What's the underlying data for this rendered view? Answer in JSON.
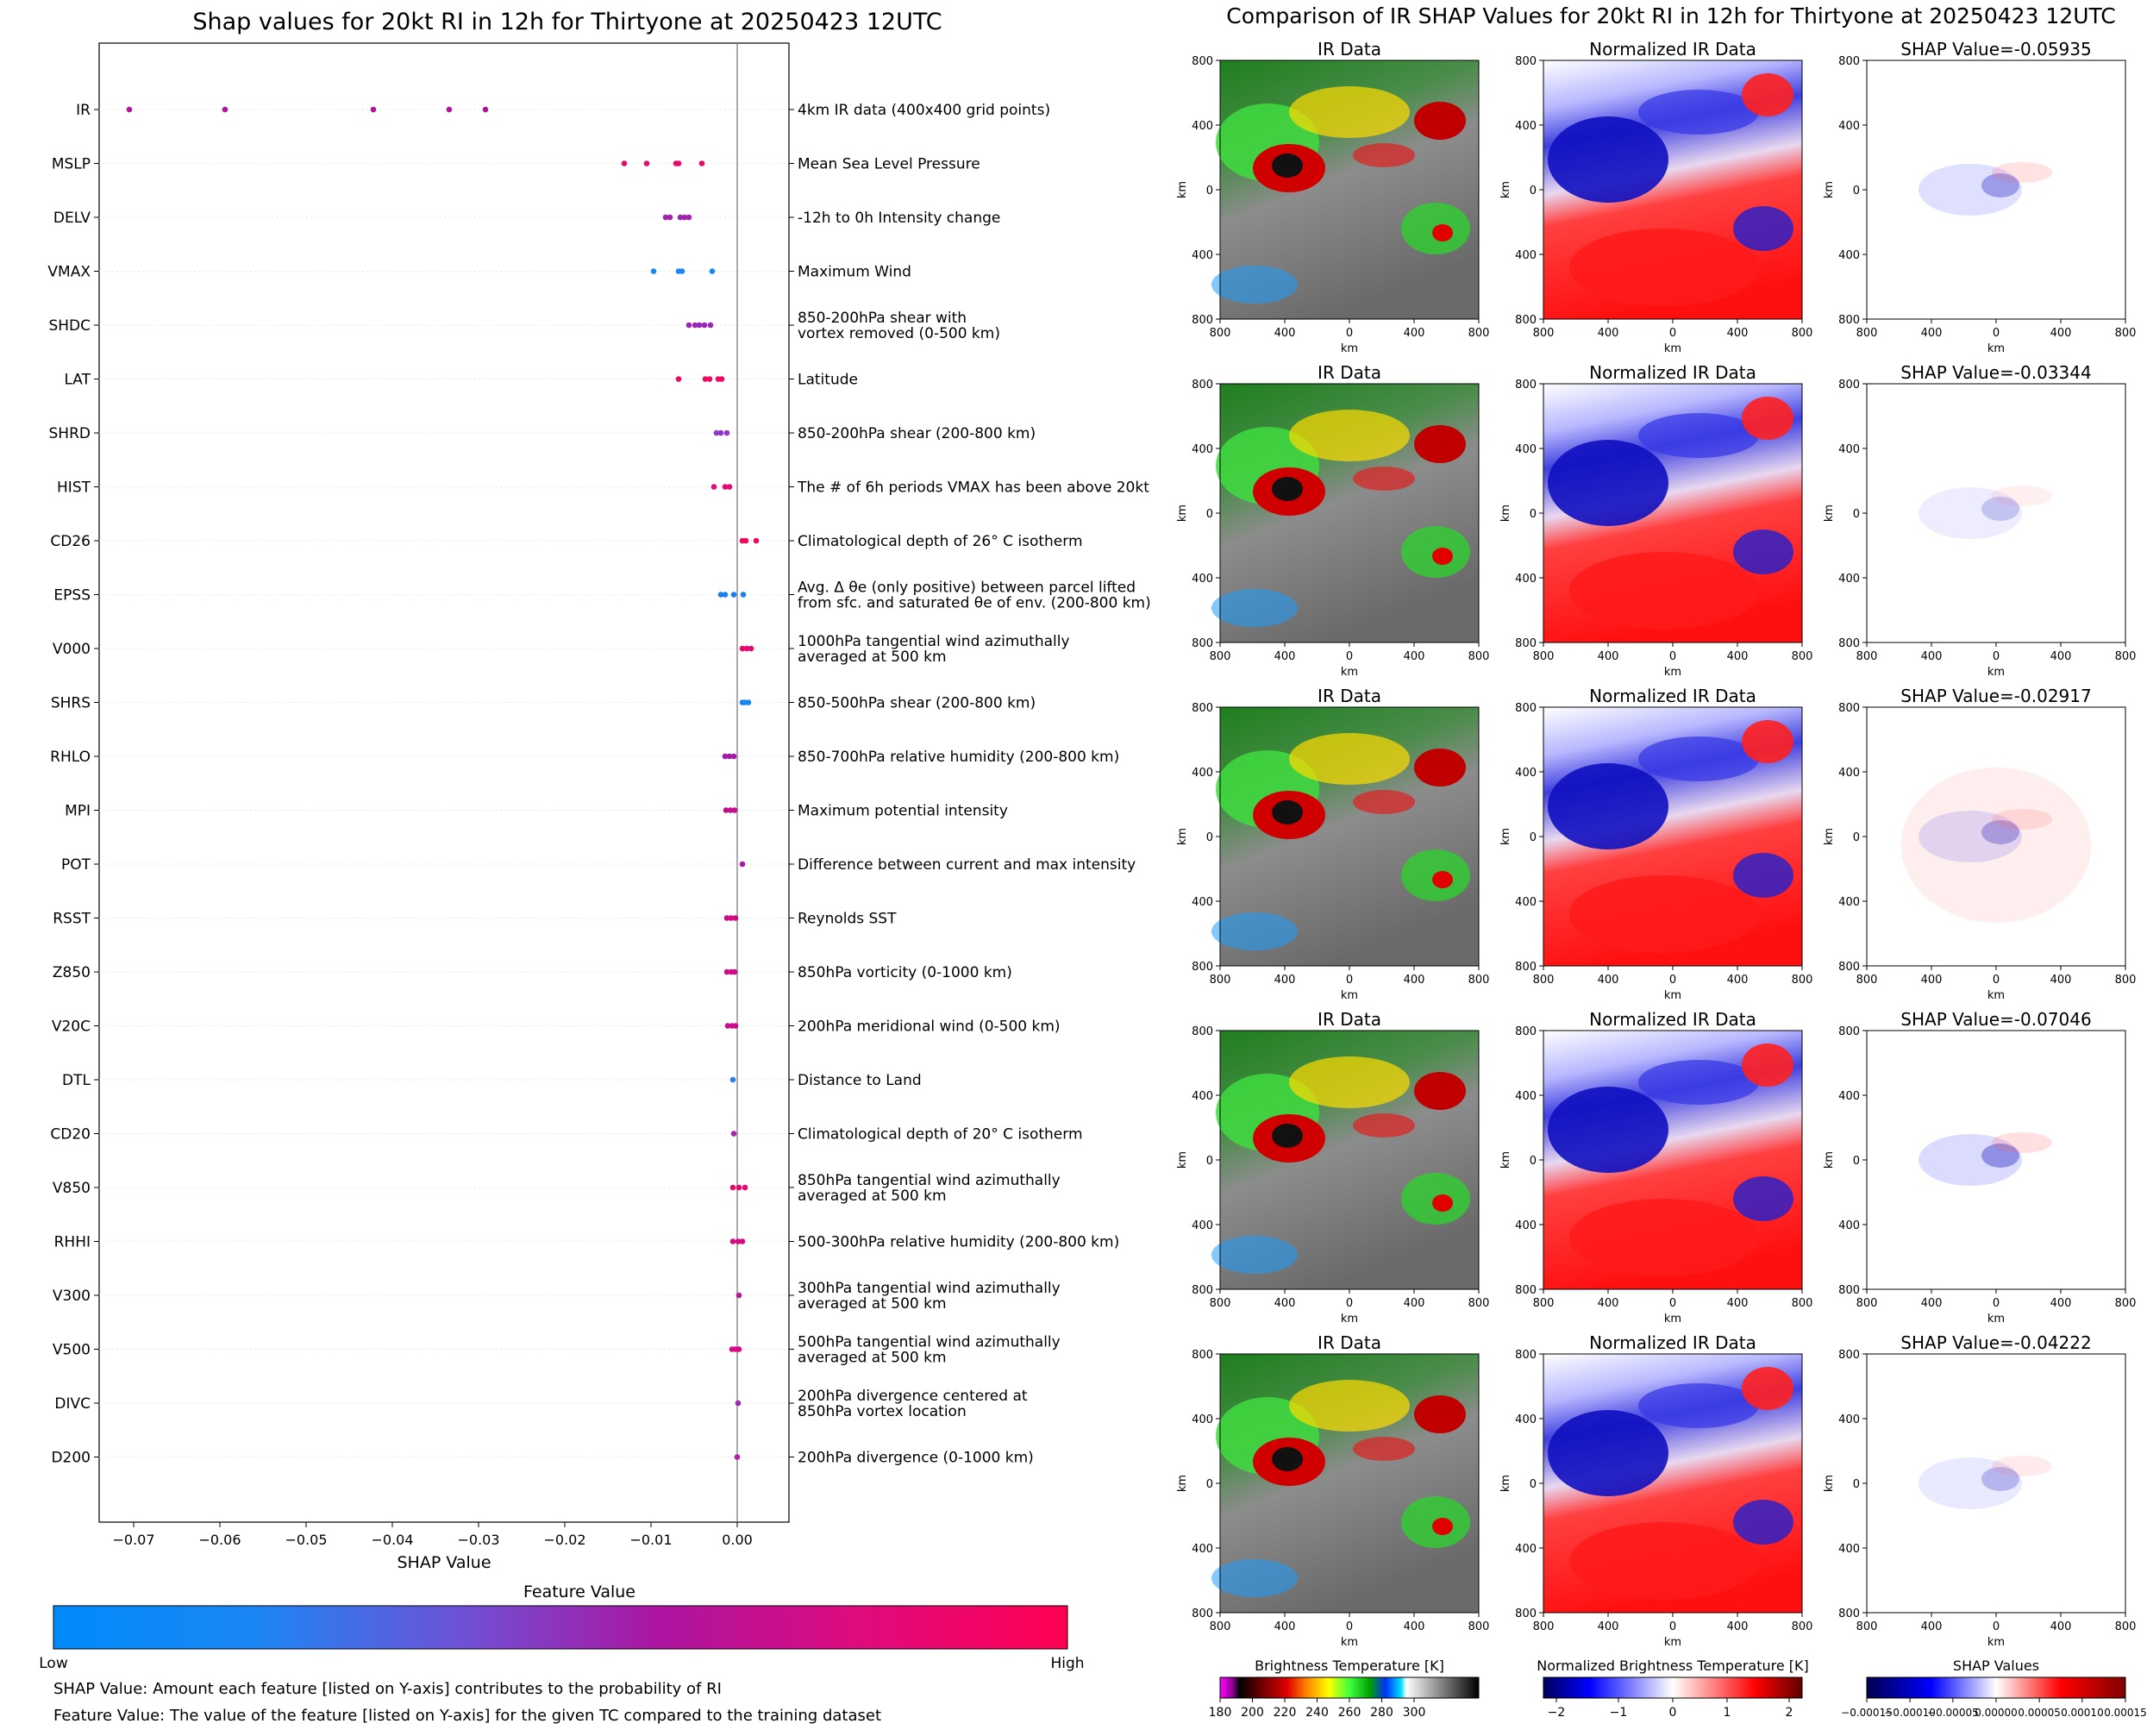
{
  "left": {
    "title": "Shap values for 20kt RI in 12h for Thirtyone at 20250423 12UTC",
    "xlabel": "SHAP Value",
    "colorbar": {
      "title": "Feature Value",
      "low": "Low",
      "high": "High",
      "colors": [
        "#008bfb",
        "#4c6be8",
        "#8a3dc6",
        "#b0169a",
        "#d80b83",
        "#ff0052"
      ]
    },
    "notes": [
      "SHAP Value: Amount each feature [listed on Y-axis] contributes to the probability of RI",
      "Feature Value: The value of the feature [listed on Y-axis] for the given TC compared to the training dataset"
    ]
  },
  "right": {
    "title": "Comparison of IR SHAP Values for 20kt RI in 12h for Thirtyone at 20250423 12UTC",
    "col_titles": [
      "IR Data",
      "Normalized IR Data"
    ],
    "shap_titles": [
      "SHAP Value=-0.05935",
      "SHAP Value=-0.03344",
      "SHAP Value=-0.02917",
      "SHAP Value=-0.07046",
      "SHAP Value=-0.04222"
    ],
    "axis_unit": "km",
    "ticks": [
      "800",
      "400",
      "0",
      "400",
      "800"
    ],
    "colorbars": [
      {
        "title": "Brightness Temperature [K]",
        "ticks": [
          "180",
          "200",
          "220",
          "240",
          "260",
          "280",
          "300"
        ]
      },
      {
        "title": "Normalized Brightness Temperature [K]",
        "ticks": [
          "−2",
          "−1",
          "0",
          "1",
          "2"
        ]
      },
      {
        "title": "SHAP Values",
        "ticks": [
          "−0.00015",
          "−0.00010",
          "−0.00005",
          "0.00000",
          "0.00005",
          "0.00010",
          "0.00015"
        ]
      }
    ]
  },
  "chart_data": [
    {
      "type": "scatter",
      "title": "Shap values for 20kt RI in 12h for Thirtyone at 20250423 12UTC",
      "xlabel": "SHAP Value",
      "xlim": [
        -0.074,
        0.006
      ],
      "xticks": [
        -0.07,
        -0.06,
        -0.05,
        -0.04,
        -0.03,
        -0.02,
        -0.01,
        0.0
      ],
      "xtick_labels": [
        "−0.07",
        "−0.06",
        "−0.05",
        "−0.04",
        "−0.03",
        "−0.02",
        "−0.01",
        "0.00"
      ],
      "features": [
        {
          "name": "IR",
          "desc": [
            "4km IR data (400x400 grid points)"
          ],
          "values": [
            -0.0705,
            -0.0594,
            -0.0422,
            -0.0334,
            -0.0292
          ],
          "color": "#b0169a"
        },
        {
          "name": "MSLP",
          "desc": [
            "Mean Sea Level Pressure"
          ],
          "values": [
            -0.0131,
            -0.0105,
            -0.0071,
            -0.0068,
            -0.0041
          ],
          "color": "#e8086c"
        },
        {
          "name": "DELV",
          "desc": [
            "-12h to 0h Intensity change"
          ],
          "values": [
            -0.0083,
            -0.0078,
            -0.0066,
            -0.0061,
            -0.0056
          ],
          "color": "#a024b0"
        },
        {
          "name": "VMAX",
          "desc": [
            "Maximum Wind"
          ],
          "values": [
            -0.0097,
            -0.0068,
            -0.0064,
            -0.0029
          ],
          "color": "#1b86f4"
        },
        {
          "name": "SHDC",
          "desc": [
            "850-200hPa shear with",
            "vortex removed (0-500 km)"
          ],
          "values": [
            -0.0056,
            -0.0049,
            -0.0044,
            -0.0038,
            -0.0031
          ],
          "color": "#9a26b6"
        },
        {
          "name": "LAT",
          "desc": [
            "Latitude"
          ],
          "values": [
            -0.0068,
            -0.0037,
            -0.0032,
            -0.0022,
            -0.0018
          ],
          "color": "#f00a62"
        },
        {
          "name": "SHRD",
          "desc": [
            "850-200hPa shear (200-800 km)"
          ],
          "values": [
            -0.0024,
            -0.0019,
            -0.0012
          ],
          "color": "#8e38c8"
        },
        {
          "name": "HIST",
          "desc": [
            "The # of 6h periods VMAX has been above 20kt"
          ],
          "values": [
            -0.0027,
            -0.0014,
            -0.0009
          ],
          "color": "#e40a78"
        },
        {
          "name": "CD26",
          "desc": [
            "Climatological depth of 26° C isotherm"
          ],
          "values": [
            0.0006,
            0.001,
            0.0022
          ],
          "color": "#f2085c"
        },
        {
          "name": "EPSS",
          "desc": [
            "Avg. Δ θe (only positive) between parcel lifted",
            "from sfc. and saturated θe of env. (200-800 km)"
          ],
          "values": [
            -0.0019,
            -0.0014,
            -0.0004,
            0.0007
          ],
          "color": "#1c7fe8"
        },
        {
          "name": "V000",
          "desc": [
            "1000hPa tangential wind azimuthally",
            "averaged at 500 km"
          ],
          "values": [
            0.0006,
            0.0011,
            0.0016
          ],
          "color": "#e5096f"
        },
        {
          "name": "SHRS",
          "desc": [
            "850-500hPa shear (200-800 km)"
          ],
          "values": [
            0.0006,
            0.0009,
            0.0013
          ],
          "color": "#1685f4"
        },
        {
          "name": "RHLO",
          "desc": [
            "850-700hPa relative humidity (200-800 km)"
          ],
          "values": [
            -0.0014,
            -0.0009,
            -0.0004
          ],
          "color": "#a21aa8"
        },
        {
          "name": "MPI",
          "desc": [
            "Maximum potential intensity"
          ],
          "values": [
            -0.0013,
            -0.0008,
            -0.0003
          ],
          "color": "#c50d8e"
        },
        {
          "name": "POT",
          "desc": [
            "Difference between current and max intensity"
          ],
          "values": [
            0.0006
          ],
          "color": "#a61aa4"
        },
        {
          "name": "RSST",
          "desc": [
            "Reynolds SST"
          ],
          "values": [
            -0.0012,
            -0.0007,
            -0.0002
          ],
          "color": "#d20a84"
        },
        {
          "name": "Z850",
          "desc": [
            "850hPa vorticity (0-1000 km)"
          ],
          "values": [
            -0.0012,
            -0.0007,
            -0.0003
          ],
          "color": "#cc0c8a"
        },
        {
          "name": "V20C",
          "desc": [
            "200hPa meridional wind (0-500 km)"
          ],
          "values": [
            -0.0011,
            -0.0006,
            -0.0002
          ],
          "color": "#cc0c8a"
        },
        {
          "name": "DTL",
          "desc": [
            "Distance to Land"
          ],
          "values": [
            -0.0005
          ],
          "color": "#2a7ff0"
        },
        {
          "name": "CD20",
          "desc": [
            "Climatological depth of 20° C isotherm"
          ],
          "values": [
            -0.0004
          ],
          "color": "#a824a6"
        },
        {
          "name": "V850",
          "desc": [
            "850hPa tangential wind azimuthally",
            "averaged at 500 km"
          ],
          "values": [
            -0.0005,
            0.0002,
            0.0009
          ],
          "color": "#e6096f"
        },
        {
          "name": "RHHI",
          "desc": [
            "500-300hPa relative humidity (200-800 km)"
          ],
          "values": [
            -0.0005,
            0.0001,
            0.0006
          ],
          "color": "#d40b80"
        },
        {
          "name": "V300",
          "desc": [
            "300hPa tangential wind azimuthally",
            "averaged at 500 km"
          ],
          "values": [
            0.0002
          ],
          "color": "#b4169c"
        },
        {
          "name": "V500",
          "desc": [
            "500hPa tangential wind azimuthally",
            "averaged at 500 km"
          ],
          "values": [
            -0.0006,
            -0.0002,
            0.0002
          ],
          "color": "#d80b80"
        },
        {
          "name": "DIVC",
          "desc": [
            "200hPa divergence centered at",
            "850hPa vortex location"
          ],
          "values": [
            0.0001
          ],
          "color": "#9c28b4"
        },
        {
          "name": "D200",
          "desc": [
            "200hPa divergence (0-1000 km)"
          ],
          "values": [
            0.0
          ],
          "color": "#aa20a6"
        }
      ]
    },
    {
      "type": "heatmap",
      "title": "Comparison of IR SHAP Values for 20kt RI in 12h for Thirtyone at 20250423 12UTC",
      "xlabel": "km",
      "ylabel": "km",
      "xlim": [
        -800,
        800
      ],
      "ylim": [
        -800,
        800
      ],
      "panels": [
        "IR Data",
        "Normalized IR Data",
        "SHAP Value"
      ],
      "shap_values": [
        -0.05935,
        -0.03344,
        -0.02917,
        -0.07046,
        -0.04222
      ]
    }
  ]
}
